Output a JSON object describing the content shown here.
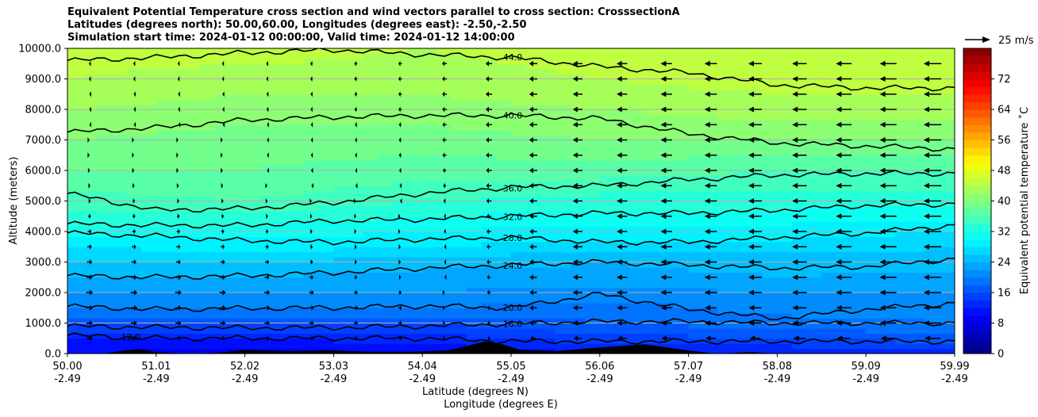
{
  "chart_data": {
    "type": "heatmap",
    "title_lines": [
      "Equivalent Potential Temperature cross section and wind vectors parallel to cross section: CrosssectionA",
      "Latitudes (degrees north): 50.00,60.00, Longitudes (degrees east): -2.50,-2.50",
      "Simulation start time: 2024-01-12 00:00:00, Valid time: 2024-01-12 14:00:00"
    ],
    "xlabel": "Latitude (degrees N)",
    "xlabel2": "Longitude (degrees E)",
    "ylabel": "Altitude (meters)",
    "xlim": [
      50.0,
      59.99
    ],
    "ylim": [
      0,
      10000
    ],
    "x_ticks": [
      {
        "lat": "50.00",
        "lon": "-2.49"
      },
      {
        "lat": "51.01",
        "lon": "-2.49"
      },
      {
        "lat": "52.02",
        "lon": "-2.49"
      },
      {
        "lat": "53.03",
        "lon": "-2.49"
      },
      {
        "lat": "54.04",
        "lon": "-2.49"
      },
      {
        "lat": "55.05",
        "lon": "-2.49"
      },
      {
        "lat": "56.06",
        "lon": "-2.49"
      },
      {
        "lat": "57.07",
        "lon": "-2.49"
      },
      {
        "lat": "58.08",
        "lon": "-2.49"
      },
      {
        "lat": "59.09",
        "lon": "-2.49"
      },
      {
        "lat": "59.99",
        "lon": "-2.49"
      }
    ],
    "y_ticks": [
      "0.0",
      "1000.0",
      "2000.0",
      "3000.0",
      "4000.0",
      "5000.0",
      "6000.0",
      "7000.0",
      "8000.0",
      "9000.0",
      "10000.0"
    ],
    "colorbar": {
      "label": "Equivalent potential temperature ˚C",
      "range": [
        0,
        80
      ],
      "ticks": [
        "0",
        "8",
        "16",
        "24",
        "32",
        "40",
        "48",
        "56",
        "64",
        "72"
      ],
      "colormap": "jet"
    },
    "quiver_key": {
      "label": "25 m/s",
      "speed": 25
    },
    "contours": [
      {
        "level": "12.0",
        "label_at_lat": 50.55,
        "z": [
          600,
          500,
          500,
          500,
          500,
          400,
          400,
          400,
          400,
          400,
          400
        ]
      },
      {
        "level": "16.0",
        "label_at_lat": 54.85,
        "z": [
          900,
          860,
          840,
          850,
          900,
          980,
          1050,
          1050,
          1000,
          1000,
          1000
        ]
      },
      {
        "level": "20.0",
        "label_at_lat": 54.85,
        "z": [
          1550,
          1450,
          1480,
          1500,
          1560,
          1500,
          1950,
          1450,
          1150,
          1450,
          1650
        ]
      },
      {
        "level": "24.0",
        "label_at_lat": 54.85,
        "z": [
          2550,
          2500,
          2550,
          2650,
          2800,
          2900,
          3000,
          2900,
          2800,
          2850,
          3100
        ]
      },
      {
        "level": "28.0",
        "label_at_lat": 54.85,
        "z": [
          3950,
          3850,
          3700,
          3650,
          3750,
          3800,
          3650,
          3650,
          3800,
          3950,
          4200
        ]
      },
      {
        "level": "32.0",
        "label_at_lat": 54.85,
        "z": [
          4250,
          4200,
          4200,
          4350,
          4400,
          4500,
          4600,
          4600,
          4700,
          4850,
          4900
        ]
      },
      {
        "level": "36.0",
        "label_at_lat": 54.85,
        "z": [
          5250,
          4700,
          4750,
          4950,
          5250,
          5450,
          5500,
          5700,
          5850,
          5900,
          5900
        ]
      },
      {
        "level": "40.0",
        "label_at_lat": 54.85,
        "z": [
          7250,
          7400,
          7650,
          7750,
          7800,
          7800,
          7700,
          7200,
          6900,
          6800,
          6700
        ]
      },
      {
        "level": "44.0",
        "label_at_lat": 54.85,
        "z": [
          9600,
          9700,
          9850,
          9950,
          9800,
          9700,
          9400,
          9200,
          8800,
          8700,
          8700
        ]
      }
    ],
    "theta_e_field": {
      "z_levels": [
        0,
        500,
        1000,
        1500,
        2000,
        2500,
        3000,
        3500,
        4000,
        5000,
        6000,
        7000,
        8000,
        9000,
        10000
      ],
      "columns": [
        {
          "lat": 50.0,
          "values": [
            10,
            12,
            16,
            20,
            22,
            24,
            26,
            28,
            31,
            35,
            38,
            40,
            42,
            44,
            45
          ]
        },
        {
          "lat": 52.0,
          "values": [
            9,
            12,
            16,
            20,
            22,
            24,
            26,
            29,
            31,
            36,
            38,
            39,
            41,
            43,
            45
          ]
        },
        {
          "lat": 54.04,
          "values": [
            10,
            13,
            16,
            20,
            22,
            23,
            25,
            28,
            30,
            34,
            37,
            39,
            41,
            43,
            44
          ]
        },
        {
          "lat": 56.06,
          "values": [
            12,
            15,
            18,
            19,
            21,
            23,
            24,
            27,
            29,
            33,
            37,
            40,
            42,
            44,
            45
          ]
        },
        {
          "lat": 58.08,
          "values": [
            12,
            16,
            19,
            21,
            22,
            24,
            25,
            27,
            29,
            33,
            36,
            40,
            43,
            45,
            46
          ]
        },
        {
          "lat": 59.99,
          "values": [
            13,
            17,
            20,
            21,
            22,
            23,
            25,
            26,
            28,
            33,
            36,
            40,
            43,
            45,
            46
          ]
        }
      ]
    },
    "wind": {
      "z_levels": [
        500,
        1000,
        1500,
        2000,
        2500,
        3000,
        3500,
        4000,
        4500,
        5000,
        5500,
        6000,
        6500,
        7000,
        7500,
        8000,
        8500,
        9000,
        9500
      ],
      "columns": [
        {
          "lat": 50.0,
          "u": [
            8,
            8,
            9,
            9,
            8,
            7,
            6,
            5,
            4,
            3,
            2,
            1,
            0,
            0,
            -1,
            -1,
            -1,
            -2,
            -2
          ]
        },
        {
          "lat": 52.0,
          "u": [
            7,
            7,
            8,
            8,
            7,
            6,
            5,
            4,
            3,
            2,
            1,
            0,
            0,
            0,
            0,
            -1,
            -1,
            -2,
            -2
          ]
        },
        {
          "lat": 54.0,
          "u": [
            4,
            4,
            4,
            3,
            2,
            1,
            1,
            0,
            0,
            -1,
            -2,
            -3,
            -4,
            -4,
            -4,
            -5,
            -5,
            -5,
            -5
          ]
        },
        {
          "lat": 55.5,
          "u": [
            -10,
            -12,
            -12,
            -12,
            -12,
            -12,
            -12,
            -12,
            -12,
            -12,
            -12,
            -12,
            -12,
            -12,
            -12,
            -12,
            -12,
            -12,
            -12
          ]
        },
        {
          "lat": 57.5,
          "u": [
            -14,
            -16,
            -16,
            -17,
            -17,
            -17,
            -17,
            -17,
            -17,
            -17,
            -17,
            -17,
            -17,
            -17,
            -17,
            -17,
            -17,
            -17,
            -17
          ]
        },
        {
          "lat": 59.99,
          "u": [
            -22,
            -24,
            -24,
            -24,
            -24,
            -24,
            -24,
            -24,
            -24,
            -24,
            -24,
            -24,
            -24,
            -24,
            -24,
            -24,
            -24,
            -24,
            -24
          ]
        }
      ]
    },
    "grid": "horizontal",
    "terrain_lat": [
      50.0,
      50.4,
      50.6,
      50.8,
      51.0,
      51.4,
      51.7,
      52.0,
      52.5,
      53.0,
      53.4,
      53.9,
      54.3,
      54.5,
      54.7,
      54.9,
      55.1,
      55.5,
      56.0,
      56.5,
      57.0,
      57.3,
      57.7,
      58.0,
      58.5,
      59.0,
      59.5,
      59.99
    ],
    "terrain_z": [
      0,
      0,
      80,
      150,
      50,
      0,
      30,
      120,
      80,
      100,
      60,
      60,
      110,
      250,
      400,
      300,
      120,
      80,
      200,
      300,
      100,
      0,
      50,
      0,
      0,
      0,
      0,
      0
    ]
  }
}
